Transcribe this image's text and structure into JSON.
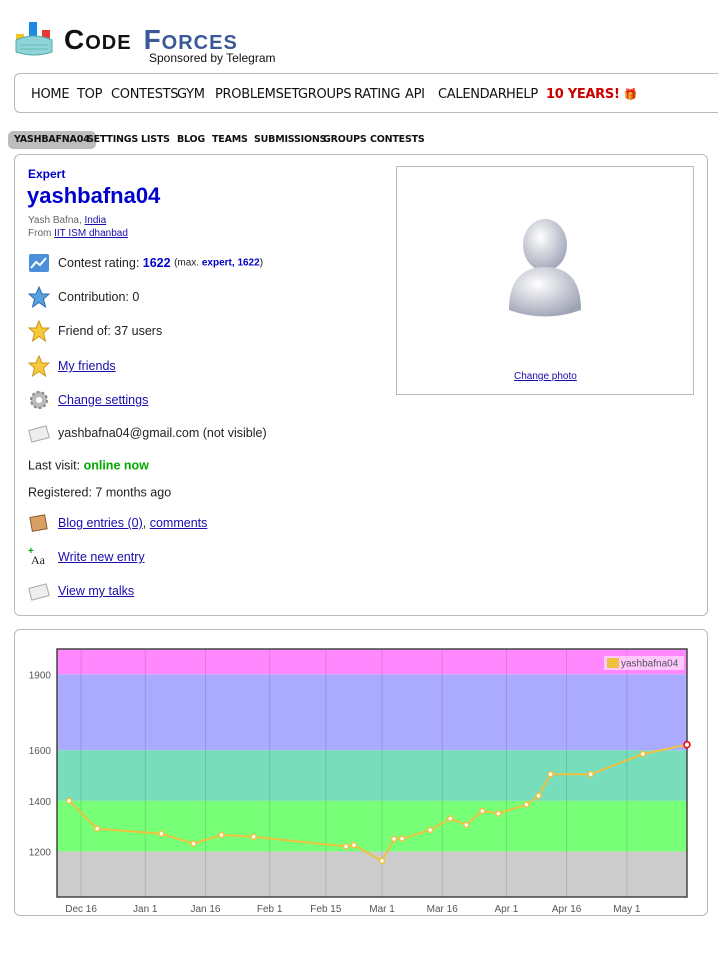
{
  "header": {
    "logo_part1": "Code",
    "logo_part2": "Forces",
    "sponsor": "Sponsored by Telegram"
  },
  "main_menu": [
    "HOME",
    "TOP",
    "CONTESTS",
    "GYM",
    "PROBLEMSET",
    "GROUPS",
    "RATING",
    "API",
    "CALENDAR",
    "HELP",
    "10 YEARS!"
  ],
  "second_menu": [
    "YASHBAFNA04",
    "SETTINGS",
    "LISTS",
    "BLOG",
    "TEAMS",
    "SUBMISSIONS",
    "GROUPS",
    "CONTESTS"
  ],
  "profile": {
    "rank": "Expert",
    "handle": "yashbafna04",
    "name": "Yash Bafna,",
    "country": "India",
    "from_label": "From",
    "organization": "IIT ISM dhanbad",
    "contest_rating_label": "Contest rating:",
    "contest_rating": "1622",
    "max_prefix": "(max.",
    "max_rank": "expert,",
    "max_rating": "1622",
    "max_suffix": ")",
    "contribution": "Contribution: 0",
    "friend_of": "Friend of: 37 users",
    "my_friends": "My friends",
    "change_settings": "Change settings",
    "email": "yashbafna04@gmail.com (not visible)",
    "last_visit_label": "Last visit:",
    "last_visit_value": "online now",
    "registered": "Registered: 7 months ago",
    "blog_entries": "Blog entries (0)",
    "blog_sep": ",",
    "comments": "comments",
    "write_entry": "Write new entry",
    "view_talks": "View my talks",
    "change_photo": "Change photo"
  },
  "colors": {
    "accent_blue": "#0000cc",
    "online_green": "#00aa00",
    "special_red": "#cc0000",
    "line": "#edc240",
    "band_gray": "#cccccc",
    "band_green": "#77ff77",
    "band_cyan": "#77ddbb",
    "band_blue": "#aaaaff",
    "band_pink": "#ff88ff"
  },
  "chart_data": {
    "type": "line",
    "series": [
      {
        "name": "yashbafna04",
        "points": [
          {
            "x": "2020-12-13",
            "y": 1400
          },
          {
            "x": "2020-12-20",
            "y": 1290
          },
          {
            "x": "2021-01-05",
            "y": 1270
          },
          {
            "x": "2021-01-13",
            "y": 1231
          },
          {
            "x": "2021-01-20",
            "y": 1265
          },
          {
            "x": "2021-01-28",
            "y": 1258
          },
          {
            "x": "2021-02-20",
            "y": 1220
          },
          {
            "x": "2021-02-22",
            "y": 1225
          },
          {
            "x": "2021-03-01",
            "y": 1163
          },
          {
            "x": "2021-03-04",
            "y": 1249
          },
          {
            "x": "2021-03-06",
            "y": 1250
          },
          {
            "x": "2021-03-13",
            "y": 1285
          },
          {
            "x": "2021-03-18",
            "y": 1330
          },
          {
            "x": "2021-03-22",
            "y": 1305
          },
          {
            "x": "2021-03-26",
            "y": 1360
          },
          {
            "x": "2021-03-30",
            "y": 1350
          },
          {
            "x": "2021-04-06",
            "y": 1385
          },
          {
            "x": "2021-04-09",
            "y": 1420
          },
          {
            "x": "2021-04-12",
            "y": 1505
          },
          {
            "x": "2021-04-22",
            "y": 1505
          },
          {
            "x": "2021-05-05",
            "y": 1585
          },
          {
            "x": "2021-05-16",
            "y": 1622
          }
        ]
      }
    ],
    "x_ticks": [
      "Dec 16",
      "Jan 1",
      "Jan 16",
      "Feb 1",
      "Feb 15",
      "Mar 1",
      "Mar 16",
      "Apr 1",
      "Apr 16",
      "May 1"
    ],
    "y_ticks": [
      1200,
      1400,
      1600,
      1900
    ],
    "ylim": [
      1020,
      2000
    ],
    "bands": [
      {
        "from": 0,
        "to": 1200,
        "color": "#cccccc"
      },
      {
        "from": 1200,
        "to": 1400,
        "color": "#77ff77"
      },
      {
        "from": 1400,
        "to": 1600,
        "color": "#77ddbb"
      },
      {
        "from": 1600,
        "to": 1900,
        "color": "#aaaaff"
      },
      {
        "from": 1900,
        "to": 2100,
        "color": "#ff88ff"
      }
    ],
    "legend_position": "top-right",
    "grid": true
  }
}
